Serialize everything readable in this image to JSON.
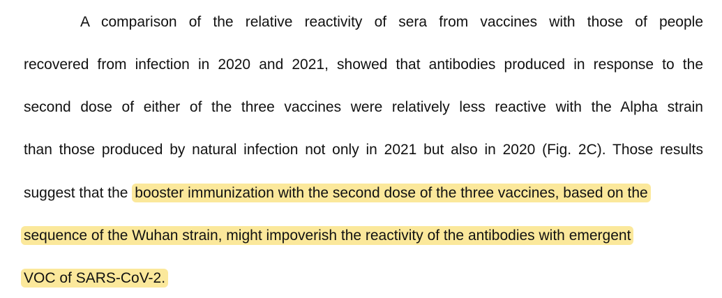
{
  "paragraph": {
    "lines": [
      "A comparison of the relative reactivity of sera from vaccines with those of people",
      "recovered from infection in 2020 and 2021, showed that antibodies produced in response to the",
      "second dose of either of the three vaccines were relatively less reactive with the Alpha strain",
      "than those produced by natural infection not only in 2021 but also in 2020 (Fig. 2C). Those results"
    ],
    "line5_prefix": "suggest that the ",
    "line5_highlight": "booster immunization with the second dose of the three vaccines, based on the",
    "line6_highlight": "sequence of the Wuhan strain, might impoverish the reactivity of the antibodies with emergent",
    "line7_highlight": "VOC of SARS-CoV-2."
  },
  "highlight_color": "#fbe89b"
}
